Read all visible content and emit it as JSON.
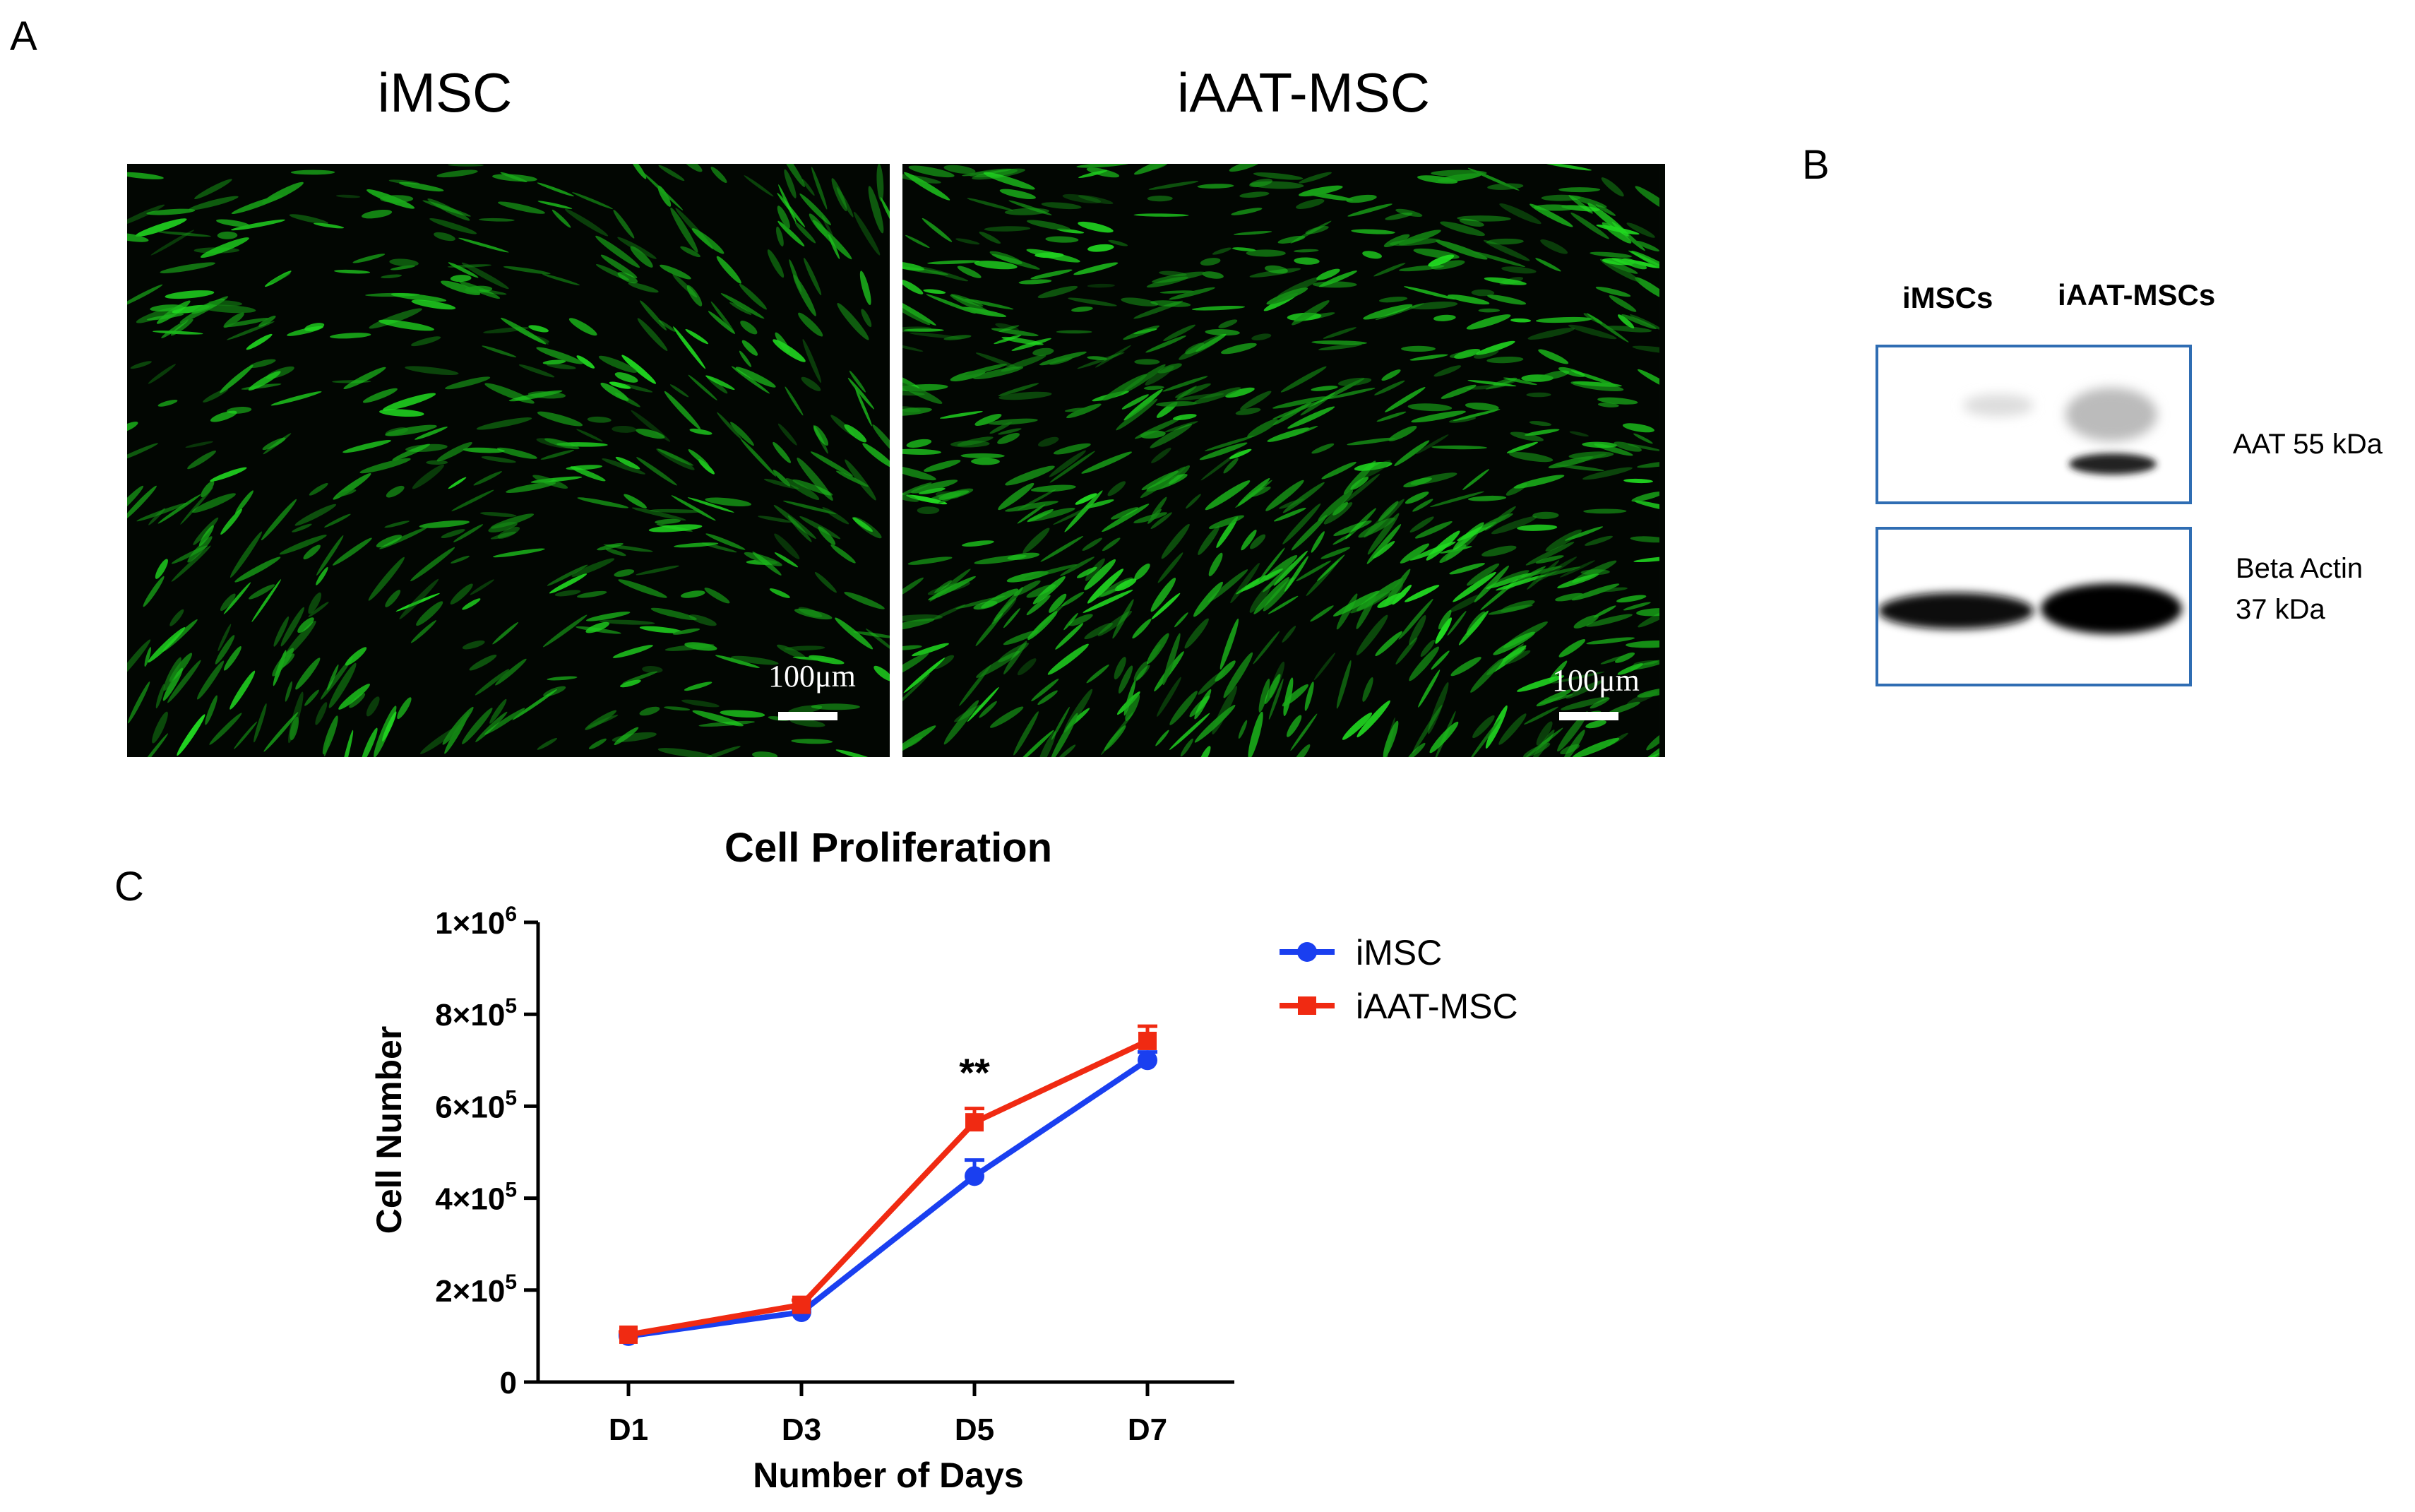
{
  "panel_a": {
    "letter": "A",
    "images": [
      {
        "title": "iMSC",
        "scale_label": "100μm",
        "density": 0.55
      },
      {
        "title": "iAAT-MSC",
        "scale_label": "100μm",
        "density": 0.8
      }
    ]
  },
  "panel_b": {
    "letter": "B",
    "lanes": [
      "iMSCs",
      "iAAT-MSCs"
    ],
    "bands": [
      {
        "label_lines": [
          "AAT 55 kDa"
        ]
      },
      {
        "label_lines": [
          "Beta Actin",
          "37 kDa"
        ]
      }
    ]
  },
  "panel_c": {
    "letter": "C",
    "chart_data": {
      "type": "line",
      "title": "Cell Proliferation",
      "xlabel": "Number of Days",
      "ylabel": "Cell Number",
      "categories": [
        "D1",
        "D3",
        "D5",
        "D7"
      ],
      "ylim": [
        0,
        1000000
      ],
      "y_ticks": [
        {
          "value": 0,
          "label": "0"
        },
        {
          "value": 200000,
          "label": "2×10",
          "exp": "5"
        },
        {
          "value": 400000,
          "label": "4×10",
          "exp": "5"
        },
        {
          "value": 600000,
          "label": "6×10",
          "exp": "5"
        },
        {
          "value": 800000,
          "label": "8×10",
          "exp": "5"
        },
        {
          "value": 1000000,
          "label": "1×10",
          "exp": "6"
        }
      ],
      "series": [
        {
          "name": "iMSC",
          "color": "#1a3ff0",
          "marker": "circle",
          "values": [
            100000,
            152000,
            448000,
            700000
          ],
          "errors": [
            5000,
            8000,
            35000,
            18000
          ]
        },
        {
          "name": "iAAT-MSC",
          "color": "#f02a12",
          "marker": "square",
          "values": [
            103000,
            168000,
            565000,
            742000
          ],
          "errors": [
            6000,
            10000,
            30000,
            32000
          ]
        }
      ],
      "annotations": [
        {
          "category": "D5",
          "text": "**"
        }
      ],
      "legend_position": "top-right",
      "grid": false
    }
  }
}
